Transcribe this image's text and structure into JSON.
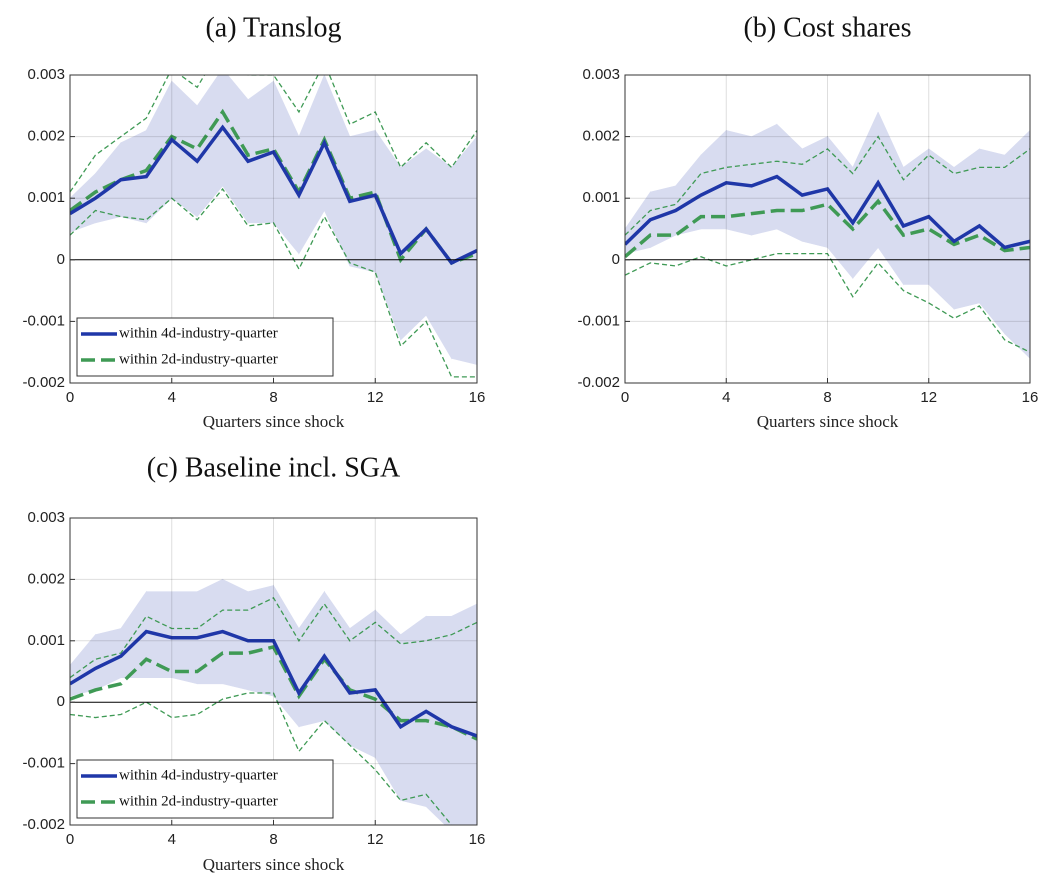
{
  "chart_data": [
    {
      "type": "line",
      "title": "(a) Translog",
      "xlabel": "Quarters since shock",
      "x": [
        0,
        1,
        2,
        3,
        4,
        5,
        6,
        7,
        8,
        9,
        10,
        11,
        12,
        13,
        14,
        15,
        16
      ],
      "xlim": [
        0,
        16
      ],
      "xticks": [
        0,
        4,
        8,
        12,
        16
      ],
      "ylim": [
        -0.002,
        0.003
      ],
      "yticks": [
        -0.002,
        -0.001,
        0,
        0.001,
        0.002,
        0.003
      ],
      "grid": true,
      "legend": "lower left",
      "band": {
        "color": "#d8dcf0",
        "upper": [
          0.001,
          0.0014,
          0.0019,
          0.0021,
          0.0029,
          0.0025,
          0.0031,
          0.0026,
          0.0029,
          0.002,
          0.003,
          0.002,
          0.0021,
          0.0015,
          0.0018,
          0.0015,
          0.002
        ],
        "lower": [
          0.00045,
          0.0006,
          0.0007,
          0.0006,
          0.001,
          0.0007,
          0.0012,
          0.0006,
          0.0006,
          0.0001,
          0.0008,
          -0.0001,
          -0.0002,
          -0.0013,
          -0.0009,
          -0.0016,
          -0.0017
        ]
      },
      "series": [
        {
          "name": "within 4d-industry-quarter",
          "color": "#1f37a8",
          "style": "solid",
          "values": [
            0.00075,
            0.001,
            0.0013,
            0.00135,
            0.00195,
            0.0016,
            0.00215,
            0.0016,
            0.00175,
            0.00105,
            0.0019,
            0.00095,
            0.00105,
            0.0001,
            0.0005,
            -5e-05,
            0.00015
          ]
        },
        {
          "name": "within 2d-industry-quarter",
          "color": "#3f9a55",
          "style": "dashed",
          "values": [
            0.0008,
            0.0011,
            0.0013,
            0.00145,
            0.002,
            0.0018,
            0.0024,
            0.0017,
            0.0018,
            0.0011,
            0.00195,
            0.001,
            0.0011,
            0.0,
            0.0005,
            -5e-05,
            0.0001
          ]
        },
        {
          "color": "#3f9a55",
          "style": "dashed-thin",
          "values": [
            0.0011,
            0.0017,
            0.002,
            0.0023,
            0.0031,
            0.0028,
            0.0035,
            0.003,
            0.003,
            0.0024,
            0.0032,
            0.0022,
            0.0024,
            0.0015,
            0.0019,
            0.0015,
            0.0021
          ]
        },
        {
          "color": "#3f9a55",
          "style": "dashed-thin",
          "values": [
            0.0004,
            0.0008,
            0.0007,
            0.00065,
            0.001,
            0.00065,
            0.00115,
            0.00055,
            0.0006,
            -0.00015,
            0.0007,
            -5e-05,
            -0.0002,
            -0.0014,
            -0.001,
            -0.0019,
            -0.0019
          ]
        }
      ]
    },
    {
      "type": "line",
      "title": "(b) Cost shares",
      "xlabel": "Quarters since shock",
      "x": [
        0,
        1,
        2,
        3,
        4,
        5,
        6,
        7,
        8,
        9,
        10,
        11,
        12,
        13,
        14,
        15,
        16
      ],
      "xlim": [
        0,
        16
      ],
      "xticks": [
        0,
        4,
        8,
        12,
        16
      ],
      "ylim": [
        -0.002,
        0.003
      ],
      "yticks": [
        -0.002,
        -0.001,
        0,
        0.001,
        0.002,
        0.003
      ],
      "grid": true,
      "band": {
        "color": "#d8dcf0",
        "upper": [
          0.0005,
          0.0011,
          0.0012,
          0.0017,
          0.0021,
          0.002,
          0.0022,
          0.0018,
          0.002,
          0.0015,
          0.0024,
          0.0015,
          0.0018,
          0.0015,
          0.0018,
          0.0017,
          0.0021
        ],
        "lower": [
          0.0001,
          0.0002,
          0.0004,
          0.0005,
          0.0005,
          0.0004,
          0.0005,
          0.0003,
          0.0002,
          -0.0003,
          0.0002,
          -0.0004,
          -0.0004,
          -0.0008,
          -0.0007,
          -0.0012,
          -0.0016
        ]
      },
      "series": [
        {
          "color": "#1f37a8",
          "style": "solid",
          "values": [
            0.00025,
            0.00065,
            0.0008,
            0.00105,
            0.00125,
            0.0012,
            0.00135,
            0.00105,
            0.00115,
            0.0006,
            0.00125,
            0.00055,
            0.0007,
            0.0003,
            0.00055,
            0.0002,
            0.0003
          ]
        },
        {
          "color": "#3f9a55",
          "style": "dashed",
          "values": [
            5e-05,
            0.0004,
            0.0004,
            0.0007,
            0.0007,
            0.00075,
            0.0008,
            0.0008,
            0.0009,
            0.0005,
            0.00095,
            0.0004,
            0.0005,
            0.00025,
            0.0004,
            0.00015,
            0.0002
          ]
        },
        {
          "color": "#3f9a55",
          "style": "dashed-thin",
          "values": [
            0.0004,
            0.0008,
            0.0009,
            0.0014,
            0.0015,
            0.00155,
            0.0016,
            0.00155,
            0.0018,
            0.0014,
            0.002,
            0.0013,
            0.0017,
            0.0014,
            0.0015,
            0.0015,
            0.0018
          ]
        },
        {
          "color": "#3f9a55",
          "style": "dashed-thin",
          "values": [
            -0.00025,
            -5e-05,
            -0.0001,
            5e-05,
            -0.0001,
            0.0,
            0.0001,
            0.0001,
            0.0001,
            -0.0006,
            -5e-05,
            -0.0005,
            -0.0007,
            -0.00095,
            -0.00075,
            -0.0013,
            -0.0015
          ]
        }
      ]
    },
    {
      "type": "line",
      "title": "(c) Baseline incl. SGA",
      "xlabel": "Quarters since shock",
      "x": [
        0,
        1,
        2,
        3,
        4,
        5,
        6,
        7,
        8,
        9,
        10,
        11,
        12,
        13,
        14,
        15,
        16
      ],
      "xlim": [
        0,
        16
      ],
      "xticks": [
        0,
        4,
        8,
        12,
        16
      ],
      "ylim": [
        -0.002,
        0.003
      ],
      "yticks": [
        -0.002,
        -0.001,
        0,
        0.001,
        0.002,
        0.003
      ],
      "grid": true,
      "legend": "lower left",
      "band": {
        "color": "#d8dcf0",
        "upper": [
          0.0006,
          0.0011,
          0.0012,
          0.0018,
          0.0018,
          0.0018,
          0.002,
          0.0018,
          0.0019,
          0.0012,
          0.0018,
          0.0012,
          0.0015,
          0.0011,
          0.0014,
          0.0014,
          0.0016
        ],
        "lower": [
          0.0001,
          0.0002,
          0.0004,
          0.0004,
          0.0004,
          0.0003,
          0.0003,
          0.0002,
          0.0001,
          -0.0004,
          -0.0003,
          -0.0007,
          -0.0009,
          -0.0016,
          -0.0017,
          -0.0021,
          -0.0026
        ]
      },
      "series": [
        {
          "name": "within 4d-industry-quarter",
          "color": "#1f37a8",
          "style": "solid",
          "values": [
            0.0003,
            0.00055,
            0.00075,
            0.00115,
            0.00105,
            0.00105,
            0.00115,
            0.001,
            0.001,
            0.00015,
            0.00075,
            0.00015,
            0.0002,
            -0.0004,
            -0.00015,
            -0.0004,
            -0.00055
          ]
        },
        {
          "name": "within 2d-industry-quarter",
          "color": "#3f9a55",
          "style": "dashed",
          "values": [
            5e-05,
            0.0002,
            0.0003,
            0.0007,
            0.0005,
            0.0005,
            0.0008,
            0.0008,
            0.0009,
            0.0001,
            0.0007,
            0.0002,
            5e-05,
            -0.0003,
            -0.0003,
            -0.0004,
            -0.0006
          ]
        },
        {
          "color": "#3f9a55",
          "style": "dashed-thin",
          "values": [
            0.0004,
            0.0007,
            0.0008,
            0.0014,
            0.0012,
            0.0012,
            0.0015,
            0.0015,
            0.0017,
            0.001,
            0.0016,
            0.001,
            0.0013,
            0.00095,
            0.001,
            0.0011,
            0.0013
          ]
        },
        {
          "color": "#3f9a55",
          "style": "dashed-thin",
          "values": [
            -0.0002,
            -0.00025,
            -0.0002,
            0.0,
            -0.00025,
            -0.0002,
            5e-05,
            0.00015,
            0.00015,
            -0.0008,
            -0.0003,
            -0.0007,
            -0.0011,
            -0.0016,
            -0.0015,
            -0.002,
            -0.0025
          ]
        }
      ]
    }
  ]
}
